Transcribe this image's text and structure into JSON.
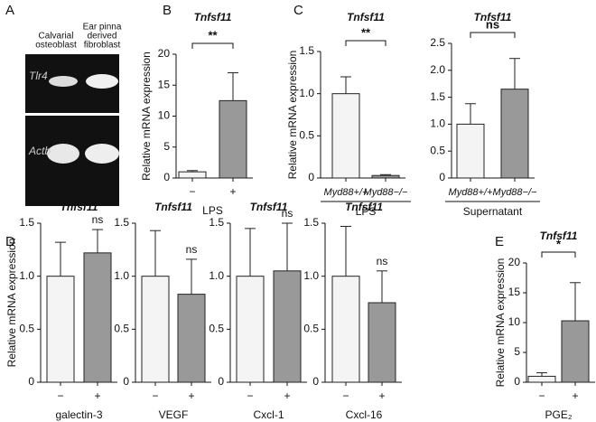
{
  "panel_labels": [
    "A",
    "B",
    "C",
    "D",
    "E"
  ],
  "gel": {
    "lanes": [
      [
        "Calvarial",
        "osteoblast"
      ],
      [
        "Ear pinna",
        "derived",
        "fibroblast"
      ]
    ],
    "genes": [
      "Tlr4",
      "Actb"
    ]
  },
  "chart_data": [
    {
      "type": "bar",
      "title": "Tnfsf11",
      "ylabel": "Relative mRNA expression",
      "xlabel": "LPS",
      "categories": [
        "−",
        "+"
      ],
      "values": [
        1,
        12.5
      ],
      "errors": [
        0.2,
        4.5
      ],
      "colors": [
        "#f4f4f4",
        "#999999"
      ],
      "ylim": [
        0,
        20
      ],
      "yticks": [
        0,
        5,
        10,
        15,
        20
      ],
      "significance": "**",
      "bracket": true
    },
    {
      "type": "bar",
      "title": "Tnfsf11",
      "ylabel": "Relative mRNA expression",
      "xlabel": "LPS",
      "categories": [
        "Myd88+/+",
        "Myd88−/−"
      ],
      "values": [
        1.0,
        0.03
      ],
      "errors": [
        0.2,
        0.01
      ],
      "colors": [
        "#f4f4f4",
        "#999999"
      ],
      "ylim": [
        0,
        1.5
      ],
      "yticks": [
        0,
        0.5,
        {
          "value": 1,
          "label": "1.0"
        },
        1.5
      ],
      "significance": "**",
      "bracket": true
    },
    {
      "type": "bar",
      "title": "Tnfsf11",
      "xlabel": "Supernatant",
      "categories": [
        "Myd88+/+",
        "Myd88−/−"
      ],
      "values": [
        1.0,
        1.65
      ],
      "errors": [
        0.38,
        0.57
      ],
      "colors": [
        "#f4f4f4",
        "#999999"
      ],
      "ylim": [
        0,
        2.5
      ],
      "yticks": [
        0,
        0.5,
        {
          "value": 1,
          "label": "1.0"
        },
        1.5,
        {
          "value": 2,
          "label": "2.0"
        },
        2.5
      ],
      "significance": "ns",
      "bracket": true
    },
    {
      "type": "bar",
      "title": "Tnfsf11",
      "ylabel": "Relative mRNA expression",
      "xlabel": "galectin-3",
      "categories": [
        "−",
        "+"
      ],
      "values": [
        1.0,
        1.22
      ],
      "errors": [
        0.32,
        0.22
      ],
      "colors": [
        "#f4f4f4",
        "#999999"
      ],
      "ylim": [
        0,
        1.5
      ],
      "yticks": [
        0,
        0.5,
        {
          "value": 1,
          "label": "1.0"
        },
        1.5
      ],
      "significance": "ns",
      "bracket": false
    },
    {
      "type": "bar",
      "title": "Tnfsf11",
      "xlabel": "VEGF",
      "categories": [
        "−",
        "+"
      ],
      "values": [
        1.0,
        0.83
      ],
      "errors": [
        0.43,
        0.33
      ],
      "colors": [
        "#f4f4f4",
        "#999999"
      ],
      "ylim": [
        0,
        1.5
      ],
      "yticks": [
        0,
        0.5,
        {
          "value": 1,
          "label": "1.0"
        },
        1.5
      ],
      "significance": "ns",
      "bracket": false
    },
    {
      "type": "bar",
      "title": "Tnfsf11",
      "xlabel": "Cxcl-1",
      "categories": [
        "−",
        "+"
      ],
      "values": [
        1.0,
        1.05
      ],
      "errors": [
        0.45,
        0.45
      ],
      "colors": [
        "#f4f4f4",
        "#999999"
      ],
      "ylim": [
        0,
        1.5
      ],
      "yticks": [
        0,
        0.5,
        {
          "value": 1,
          "label": "1.0"
        },
        1.5
      ],
      "significance": "ns",
      "bracket": false
    },
    {
      "type": "bar",
      "title": "Tnfsf11",
      "xlabel": "Cxcl-16",
      "categories": [
        "−",
        "+"
      ],
      "values": [
        1.0,
        0.75
      ],
      "errors": [
        0.47,
        0.3
      ],
      "colors": [
        "#f4f4f4",
        "#999999"
      ],
      "ylim": [
        0,
        1.5
      ],
      "yticks": [
        0,
        0.5,
        {
          "value": 1,
          "label": "1.0"
        },
        1.5
      ],
      "significance": "ns",
      "bracket": false
    },
    {
      "type": "bar",
      "title": "Tnfsf11",
      "ylabel": "Relative mRNA expression",
      "xlabel": "PGE₂",
      "categories": [
        "−",
        "+"
      ],
      "values": [
        1,
        10.3
      ],
      "errors": [
        0.6,
        6.4
      ],
      "colors": [
        "#f4f4f4",
        "#999999"
      ],
      "ylim": [
        0,
        20
      ],
      "yticks": [
        0,
        5,
        10,
        15,
        20
      ],
      "significance": "*",
      "bracket": true
    }
  ]
}
